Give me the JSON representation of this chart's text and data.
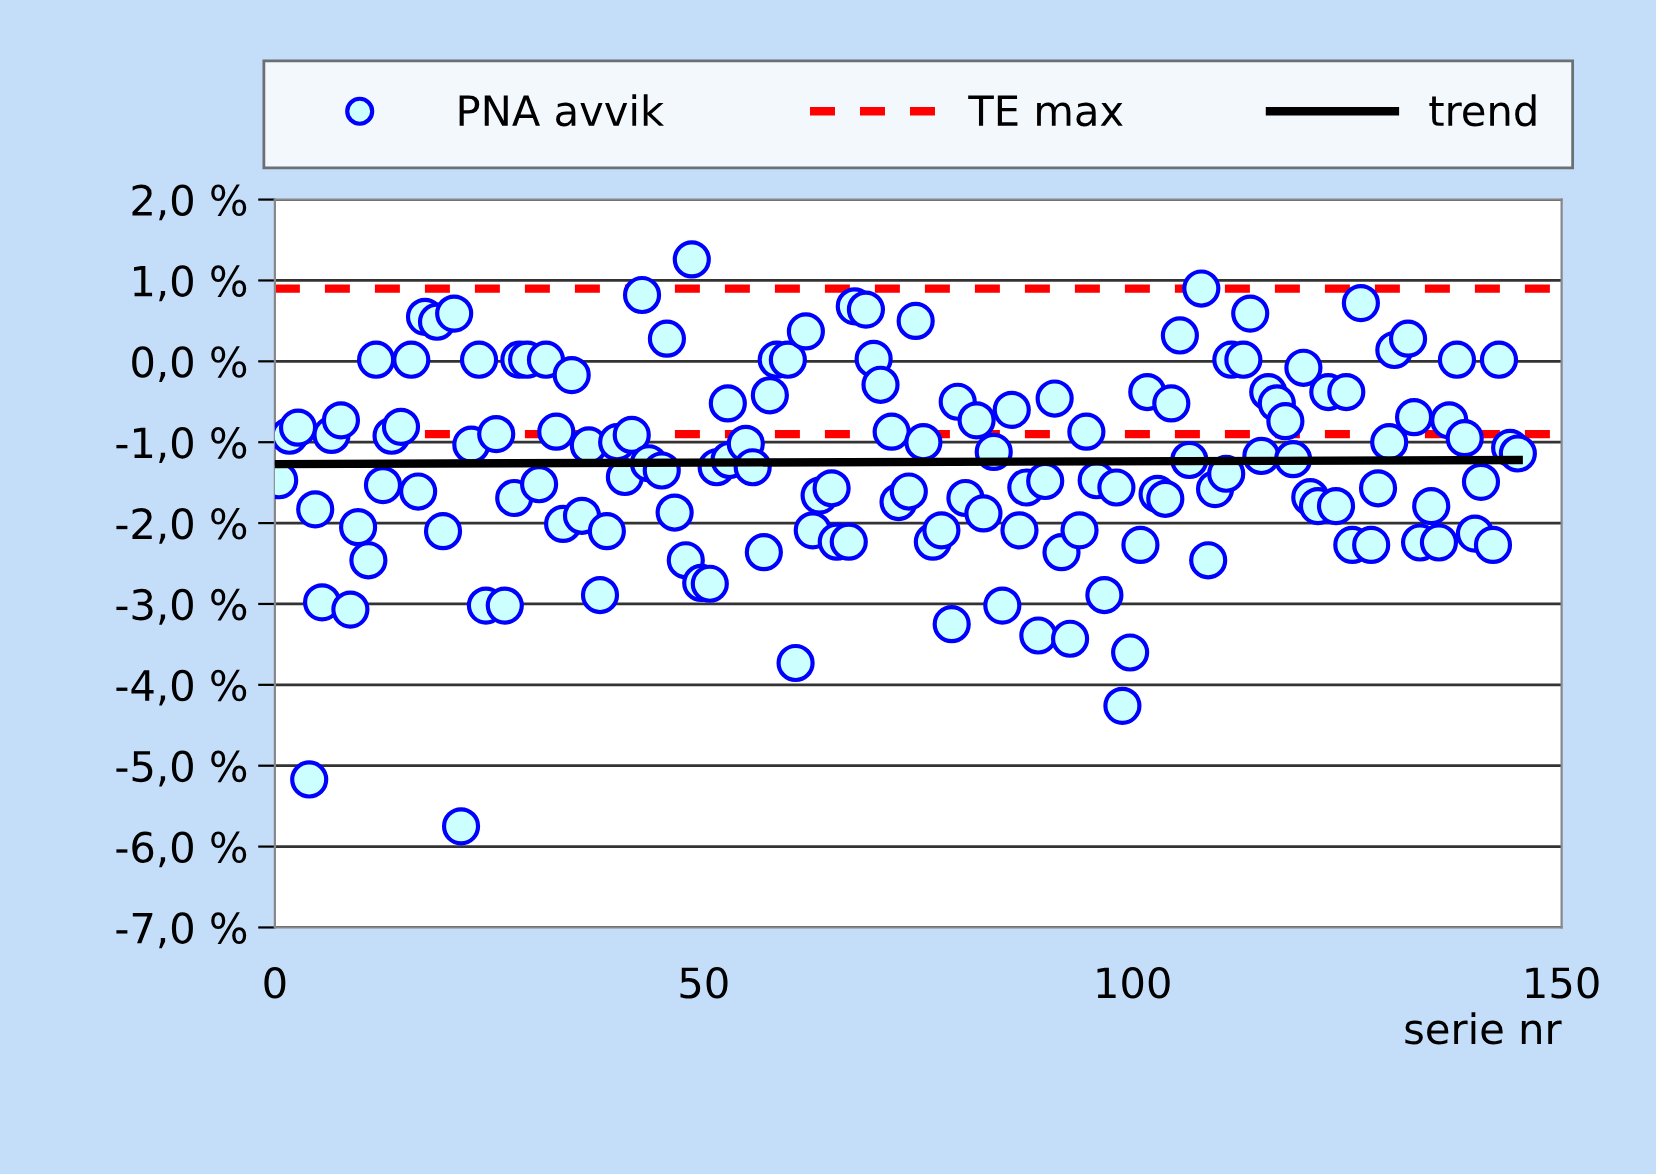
{
  "chart_data": {
    "type": "scatter",
    "xlabel": "serie nr",
    "xlim": [
      0,
      150
    ],
    "xticks": [
      0,
      50,
      100,
      150
    ],
    "ylim": [
      -7,
      2
    ],
    "yticks": [
      {
        "value": 2,
        "label": "2,0 %"
      },
      {
        "value": 1,
        "label": "1,0 %"
      },
      {
        "value": 0,
        "label": "0,0 %"
      },
      {
        "value": -1,
        "label": "-1,0 %"
      },
      {
        "value": -2,
        "label": "-2,0 %"
      },
      {
        "value": -3,
        "label": "-3,0 %"
      },
      {
        "value": -4,
        "label": "-4,0 %"
      },
      {
        "value": -5,
        "label": "-5,0 %"
      },
      {
        "value": -6,
        "label": "-6,0 %"
      },
      {
        "value": -7,
        "label": "-7,0 %"
      }
    ],
    "grid": "y",
    "legend": "top",
    "series": [
      {
        "name": "PNA avvik",
        "marker": "circle",
        "color": "#0000ff",
        "x": [
          0.5,
          1.7,
          2.7,
          4.0,
          4.7,
          5.5,
          6.6,
          7.7,
          8.8,
          9.7,
          10.9,
          11.8,
          12.6,
          13.6,
          14.7,
          15.9,
          16.7,
          17.5,
          18.9,
          19.6,
          20.9,
          21.7,
          22.9,
          23.8,
          24.6,
          25.8,
          26.8,
          27.9,
          28.5,
          29.4,
          30.8,
          31.6,
          32.8,
          33.6,
          34.6,
          35.8,
          36.6,
          37.9,
          38.7,
          39.9,
          40.8,
          41.6,
          42.8,
          43.6,
          45.1,
          45.7,
          46.6,
          47.9,
          48.6,
          49.7,
          50.7,
          51.5,
          52.8,
          53.0,
          54.9,
          55.7,
          57.0,
          57.7,
          58.5,
          59.8,
          60.7,
          61.9,
          62.7,
          63.5,
          64.9,
          65.5,
          66.9,
          67.6,
          68.9,
          69.8,
          70.6,
          71.9,
          72.7,
          73.9,
          74.7,
          75.6,
          76.7,
          77.7,
          78.9,
          79.6,
          80.5,
          81.8,
          82.6,
          83.8,
          84.8,
          85.9,
          86.8,
          87.6,
          89.0,
          89.8,
          90.9,
          91.7,
          92.7,
          93.8,
          94.6,
          95.8,
          96.7,
          98.1,
          98.8,
          99.7,
          100.9,
          101.7,
          102.9,
          103.8,
          104.5,
          105.5,
          106.6,
          108.0,
          108.8,
          109.6,
          110.9,
          111.5,
          112.9,
          113.7,
          115.0,
          115.8,
          116.8,
          117.8,
          118.7,
          119.9,
          120.7,
          121.6,
          122.8,
          123.7,
          124.9,
          125.6,
          126.6,
          127.8,
          128.6,
          129.9,
          130.5,
          132.1,
          132.8,
          133.5,
          134.8,
          135.7,
          136.9,
          137.8,
          138.7,
          139.9,
          140.6,
          142.0,
          142.7,
          144.0,
          144.9
        ],
        "values": [
          -1.47,
          -0.92,
          -0.82,
          -5.17,
          -1.83,
          -2.98,
          -0.91,
          -0.73,
          -3.07,
          -2.05,
          -2.46,
          0.02,
          -1.53,
          -0.92,
          -0.81,
          0.02,
          -1.61,
          0.55,
          0.49,
          -2.1,
          0.59,
          -5.75,
          -1.03,
          0.02,
          -3.02,
          -0.9,
          -3.02,
          -1.69,
          0.02,
          0.02,
          -1.52,
          0.02,
          -0.87,
          -2.01,
          -0.17,
          -1.91,
          -1.04,
          -2.89,
          -2.1,
          -1.0,
          -1.43,
          -0.91,
          0.82,
          -1.26,
          -1.35,
          0.28,
          -1.87,
          -2.46,
          1.26,
          -2.74,
          -2.75,
          -1.31,
          -0.52,
          -1.22,
          -1.02,
          -1.31,
          -2.36,
          -0.42,
          0.02,
          0.02,
          -3.73,
          0.37,
          -2.09,
          -1.66,
          -1.57,
          -2.23,
          -2.23,
          0.68,
          0.64,
          0.03,
          -0.29,
          -0.87,
          -1.74,
          -1.61,
          0.5,
          -1.0,
          -2.23,
          -2.09,
          -3.25,
          -0.5,
          -1.69,
          -0.73,
          -1.88,
          -1.12,
          -3.02,
          -0.6,
          -2.09,
          -1.56,
          -3.39,
          -1.48,
          -0.46,
          -2.36,
          -3.43,
          -2.09,
          -0.87,
          -1.47,
          -2.89,
          -1.56,
          -4.26,
          -3.6,
          -2.27,
          -0.38,
          -1.64,
          -1.7,
          -0.52,
          0.32,
          -1.22,
          0.9,
          -2.46,
          -1.58,
          -1.39,
          0.02,
          0.02,
          0.59,
          -1.17,
          -0.38,
          -0.52,
          -0.74,
          -1.21,
          -0.08,
          -1.68,
          -1.79,
          -0.38,
          -1.79,
          -0.38,
          -2.27,
          0.72,
          -2.27,
          -1.57,
          -1.0,
          0.14,
          0.28,
          -0.69,
          -2.24,
          -1.79,
          -2.24,
          -0.73,
          0.02,
          -0.95,
          -2.13,
          -1.49,
          -2.27,
          0.02,
          -1.07,
          -1.14
        ]
      },
      {
        "name": "trend",
        "type": "line",
        "color": "#000000",
        "x": [
          0,
          145
        ],
        "values": [
          -1.27,
          -1.22
        ]
      }
    ],
    "ref_lines": [
      {
        "axis": "y",
        "value": 0.9,
        "label": "TE max",
        "color": "#ff0000",
        "line_style": "dashed"
      },
      {
        "axis": "y",
        "value": -0.9,
        "color": "#ff0000",
        "line_style": "dashed"
      }
    ]
  }
}
